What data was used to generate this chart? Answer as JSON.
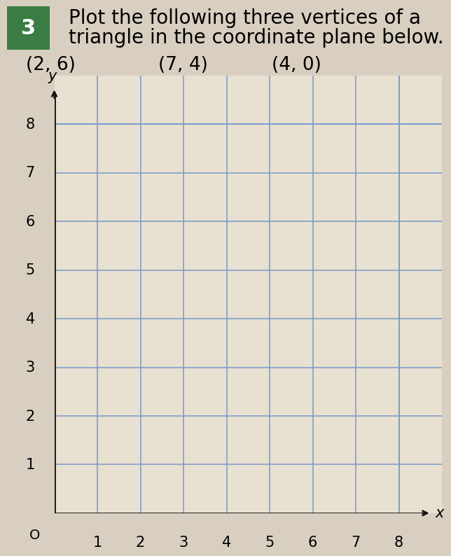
{
  "title_number": "3",
  "title_number_bg": "#3a7d44",
  "title_line1": "Plot the following three vertices of a",
  "title_line2": "triangle in the coordinate plane below.",
  "vertices_label_parts": [
    "(2, 6)",
    "(7, 4)",
    "(4, 0)"
  ],
  "x_label": "x",
  "y_label": "y",
  "origin_label": "O",
  "x_ticks": [
    1,
    2,
    3,
    4,
    5,
    6,
    7,
    8
  ],
  "y_ticks": [
    1,
    2,
    3,
    4,
    5,
    6,
    7,
    8
  ],
  "xlim": [
    0,
    9
  ],
  "ylim": [
    0,
    9
  ],
  "grid_color": "#7799cc",
  "axis_color": "#111111",
  "bg_color": "#d8cfc0",
  "plot_bg_color": "#e8e0d0",
  "title_fontsize": 20,
  "vertex_label_fontsize": 19,
  "tick_fontsize": 15,
  "fig_width": 6.75,
  "fig_height": 8.22
}
